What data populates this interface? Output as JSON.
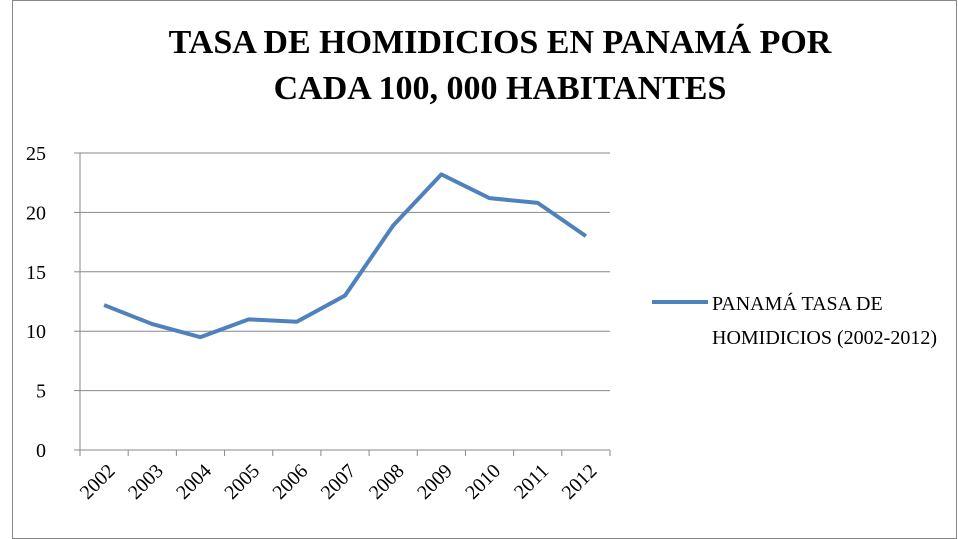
{
  "chart_data": {
    "type": "line",
    "title": "TASA DE HOMIDICIOS EN PANAMÁ POR CADA 100, 000 HABITANTES",
    "categories": [
      "2002",
      "2003",
      "2004",
      "2005",
      "2006",
      "2007",
      "2008",
      "2009",
      "2010",
      "2011",
      "2012"
    ],
    "series": [
      {
        "name": "PANAMÁ TASA DE HOMIDICIOS (2002-2012)",
        "color": "#4f81bd",
        "values": [
          12.2,
          10.6,
          9.5,
          11.0,
          10.8,
          13.0,
          18.9,
          23.2,
          21.2,
          20.8,
          18.0
        ]
      }
    ],
    "ylim": [
      0,
      25
    ],
    "yticks": [
      0,
      5,
      10,
      15,
      20,
      25
    ],
    "grid": true,
    "legend": "right"
  }
}
